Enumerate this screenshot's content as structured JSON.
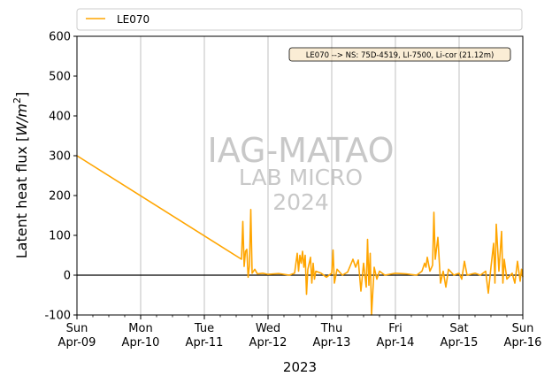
{
  "chart_data": {
    "type": "line",
    "xlabel": "2023",
    "ylabel": "Latent heat flux [W/m²]",
    "ylabel_parts": {
      "text": "Latent heat flux [",
      "unit_base": "W/m",
      "unit_exp": "2",
      "close": "]"
    },
    "ylim": [
      -100,
      600
    ],
    "yticks": [
      -100,
      0,
      100,
      200,
      300,
      400,
      500,
      600
    ],
    "xlim": [
      "2023-04-09",
      "2023-04-16"
    ],
    "xticks": [
      {
        "date": "2023-04-09",
        "day": "Sun",
        "label": "Apr-09"
      },
      {
        "date": "2023-04-10",
        "day": "Mon",
        "label": "Apr-10"
      },
      {
        "date": "2023-04-11",
        "day": "Tue",
        "label": "Apr-11"
      },
      {
        "date": "2023-04-12",
        "day": "Wed",
        "label": "Apr-12"
      },
      {
        "date": "2023-04-13",
        "day": "Thu",
        "label": "Apr-13"
      },
      {
        "date": "2023-04-14",
        "day": "Fri",
        "label": "Apr-14"
      },
      {
        "date": "2023-04-15",
        "day": "Sat",
        "label": "Apr-15"
      },
      {
        "date": "2023-04-16",
        "day": "Sun",
        "label": "Apr-16"
      }
    ],
    "grid": "vertical",
    "zero_line": true,
    "legend": {
      "placement": "top",
      "entries": [
        "LE070"
      ]
    },
    "annotation": "LE070 --> NS: 75D-4519, LI-7500, Li-cor (21.12m)",
    "watermark": [
      "IAG-MATAO",
      "LAB MICRO",
      "2024"
    ],
    "series": [
      {
        "name": "LE070",
        "color": "#ffa500",
        "points": [
          [
            "2023-04-09 00:00",
            300
          ],
          [
            "2023-04-11 14:00",
            40
          ],
          [
            "2023-04-11 14:30",
            135
          ],
          [
            "2023-04-11 15:00",
            22
          ],
          [
            "2023-04-11 15:30",
            60
          ],
          [
            "2023-04-11 16:00",
            65
          ],
          [
            "2023-04-11 16:30",
            -5
          ],
          [
            "2023-04-11 17:00",
            25
          ],
          [
            "2023-04-11 17:30",
            165
          ],
          [
            "2023-04-11 18:00",
            5
          ],
          [
            "2023-04-11 19:00",
            15
          ],
          [
            "2023-04-11 20:00",
            3
          ],
          [
            "2023-04-11 22:00",
            5
          ],
          [
            "2023-04-12 00:00",
            2
          ],
          [
            "2023-04-12 04:00",
            4
          ],
          [
            "2023-04-12 08:00",
            0
          ],
          [
            "2023-04-12 10:00",
            5
          ],
          [
            "2023-04-12 11:00",
            55
          ],
          [
            "2023-04-12 11:30",
            10
          ],
          [
            "2023-04-12 12:00",
            50
          ],
          [
            "2023-04-12 12:30",
            30
          ],
          [
            "2023-04-12 13:00",
            60
          ],
          [
            "2023-04-12 13:30",
            20
          ],
          [
            "2023-04-12 14:00",
            50
          ],
          [
            "2023-04-12 14:30",
            -48
          ],
          [
            "2023-04-12 15:00",
            15
          ],
          [
            "2023-04-12 16:00",
            45
          ],
          [
            "2023-04-12 16:30",
            -20
          ],
          [
            "2023-04-12 17:00",
            30
          ],
          [
            "2023-04-12 17:30",
            -10
          ],
          [
            "2023-04-12 18:00",
            10
          ],
          [
            "2023-04-12 20:00",
            5
          ],
          [
            "2023-04-12 22:00",
            -5
          ],
          [
            "2023-04-13 00:00",
            5
          ],
          [
            "2023-04-13 00:30",
            63
          ],
          [
            "2023-04-13 01:00",
            -20
          ],
          [
            "2023-04-13 02:00",
            15
          ],
          [
            "2023-04-13 04:00",
            0
          ],
          [
            "2023-04-13 06:00",
            8
          ],
          [
            "2023-04-13 08:00",
            40
          ],
          [
            "2023-04-13 09:00",
            20
          ],
          [
            "2023-04-13 10:00",
            38
          ],
          [
            "2023-04-13 11:00",
            -40
          ],
          [
            "2023-04-13 12:00",
            30
          ],
          [
            "2023-04-13 13:00",
            -30
          ],
          [
            "2023-04-13 13:30",
            90
          ],
          [
            "2023-04-13 14:00",
            -25
          ],
          [
            "2023-04-13 14:30",
            55
          ],
          [
            "2023-04-13 15:00",
            -100
          ],
          [
            "2023-04-13 16:00",
            20
          ],
          [
            "2023-04-13 17:00",
            -10
          ],
          [
            "2023-04-13 18:00",
            10
          ],
          [
            "2023-04-13 20:00",
            0
          ],
          [
            "2023-04-14 00:00",
            5
          ],
          [
            "2023-04-14 04:00",
            3
          ],
          [
            "2023-04-14 08:00",
            0
          ],
          [
            "2023-04-14 10:00",
            10
          ],
          [
            "2023-04-14 11:00",
            30
          ],
          [
            "2023-04-14 11:30",
            20
          ],
          [
            "2023-04-14 12:00",
            45
          ],
          [
            "2023-04-14 13:00",
            10
          ],
          [
            "2023-04-14 14:00",
            25
          ],
          [
            "2023-04-14 14:30",
            158
          ],
          [
            "2023-04-14 15:00",
            40
          ],
          [
            "2023-04-14 16:00",
            95
          ],
          [
            "2023-04-14 17:00",
            -20
          ],
          [
            "2023-04-14 18:00",
            10
          ],
          [
            "2023-04-14 19:00",
            -30
          ],
          [
            "2023-04-14 20:00",
            15
          ],
          [
            "2023-04-14 22:00",
            0
          ],
          [
            "2023-04-15 00:00",
            5
          ],
          [
            "2023-04-15 01:00",
            -10
          ],
          [
            "2023-04-15 02:00",
            35
          ],
          [
            "2023-04-15 03:00",
            0
          ],
          [
            "2023-04-15 06:00",
            5
          ],
          [
            "2023-04-15 08:00",
            0
          ],
          [
            "2023-04-15 10:00",
            10
          ],
          [
            "2023-04-15 11:00",
            -45
          ],
          [
            "2023-04-15 12:00",
            20
          ],
          [
            "2023-04-15 13:00",
            80
          ],
          [
            "2023-04-15 13:30",
            -20
          ],
          [
            "2023-04-15 14:00",
            128
          ],
          [
            "2023-04-15 15:00",
            10
          ],
          [
            "2023-04-15 16:00",
            110
          ],
          [
            "2023-04-15 16:30",
            -20
          ],
          [
            "2023-04-15 17:00",
            40
          ],
          [
            "2023-04-15 18:00",
            -10
          ],
          [
            "2023-04-15 20:00",
            5
          ],
          [
            "2023-04-15 21:00",
            -20
          ],
          [
            "2023-04-15 22:00",
            35
          ],
          [
            "2023-04-15 23:00",
            -15
          ],
          [
            "2023-04-15 23:30",
            15
          ],
          [
            "2023-04-16 00:00",
            -5
          ]
        ]
      }
    ]
  }
}
